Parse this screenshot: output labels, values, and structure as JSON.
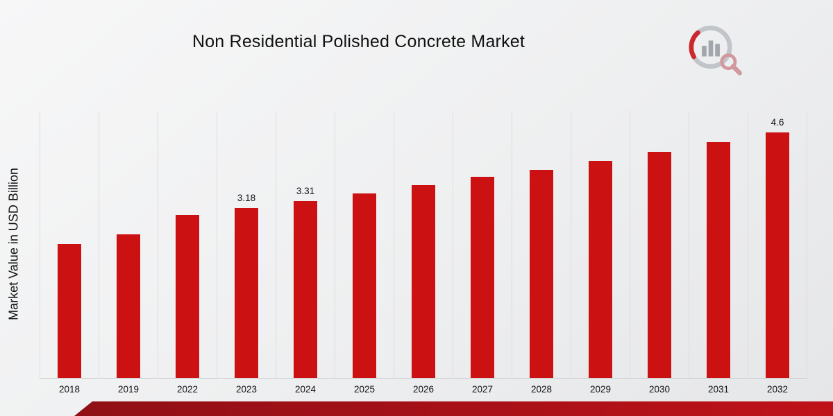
{
  "title": "Non Residential Polished Concrete Market",
  "branding": {
    "logo_icon": "chart-magnifier-logo"
  },
  "chart_data": {
    "type": "bar",
    "title": "Non Residential Polished Concrete Market",
    "ylabel": "Market Value in USD Billion",
    "xlabel": "",
    "categories": [
      "2018",
      "2019",
      "2022",
      "2023",
      "2024",
      "2025",
      "2026",
      "2027",
      "2028",
      "2029",
      "2030",
      "2031",
      "2032"
    ],
    "values": [
      2.5,
      2.69,
      3.05,
      3.18,
      3.31,
      3.45,
      3.61,
      3.76,
      3.89,
      4.07,
      4.23,
      4.42,
      4.6
    ],
    "shown_labels": {
      "2023": "3.18",
      "2024": "3.31",
      "2032": "4.6"
    },
    "ylim": [
      0,
      5
    ],
    "grid": "vertical-only",
    "legend": "none",
    "bar_color": "#cc1113"
  },
  "colors": {
    "bar": "#cc1113",
    "gridline": "#dcdddf",
    "baseline": "#c8c9cb",
    "text": "#111111",
    "bg_top": "#f7f7f8",
    "bg_bottom": "#e5e6e8",
    "stripe_left": "#8f1016",
    "stripe_right": "#bf1118",
    "logo_gray": "#bdc1c6",
    "logo_red": "#c8141a",
    "logo_pink": "#cf9096"
  }
}
